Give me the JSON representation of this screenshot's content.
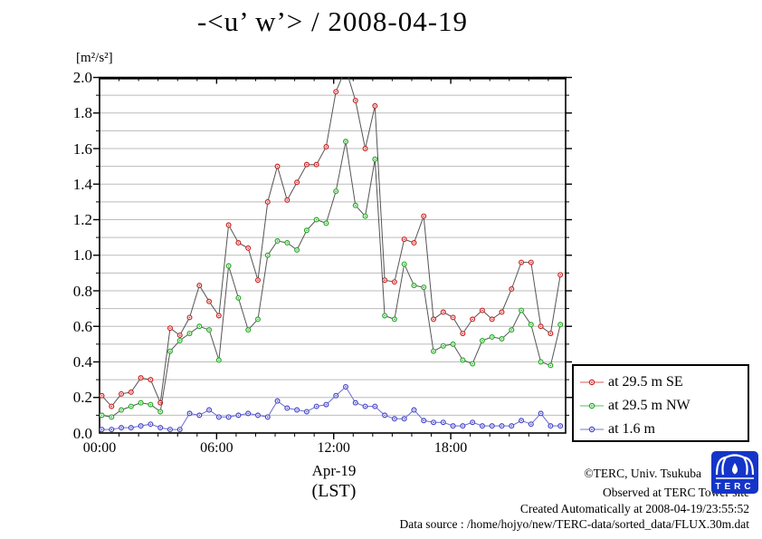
{
  "chart_data": {
    "type": "line",
    "title": "-<u’ w’> / 2008-04-19",
    "ylabel": "[m²/s²]",
    "ylim": [
      0.0,
      2.0
    ],
    "y_tick_step": 0.2,
    "y_minor_step": 0.1,
    "grid": "horizontal-only",
    "legend_position": "outside-right-bottom",
    "x_tick_labels": [
      "00:00",
      "06:00",
      "12:00",
      "18:00"
    ],
    "x_tick_hours": [
      0,
      6,
      12,
      18
    ],
    "x_date_label": "Apr-19",
    "x_unit_label": "(LST)",
    "x_times": [
      "00:00",
      "00:30",
      "01:00",
      "01:30",
      "02:00",
      "02:30",
      "03:00",
      "03:30",
      "04:00",
      "04:30",
      "05:00",
      "05:30",
      "06:00",
      "06:30",
      "07:00",
      "07:30",
      "08:00",
      "08:30",
      "09:00",
      "09:30",
      "10:00",
      "10:30",
      "11:00",
      "11:30",
      "12:00",
      "12:30",
      "13:00",
      "13:30",
      "14:00",
      "14:30",
      "15:00",
      "15:30",
      "16:00",
      "16:30",
      "17:00",
      "17:30",
      "18:00",
      "18:30",
      "19:00",
      "19:30",
      "20:00",
      "20:30",
      "21:00",
      "21:30",
      "22:00",
      "22:30",
      "23:00",
      "23:30"
    ],
    "series": [
      {
        "name": "at 29.5 m SE",
        "marker_color": "#cc2222",
        "line_color": "#555555",
        "clipped_above_max_index": 25,
        "values": [
          0.21,
          0.15,
          0.22,
          0.23,
          0.31,
          0.3,
          0.17,
          0.59,
          0.55,
          0.65,
          0.83,
          0.74,
          0.66,
          1.17,
          1.07,
          1.04,
          0.86,
          1.3,
          1.5,
          1.31,
          1.41,
          1.51,
          1.51,
          1.61,
          1.92,
          2.05,
          1.87,
          1.6,
          1.84,
          0.86,
          0.85,
          1.09,
          1.07,
          1.22,
          0.64,
          0.68,
          0.65,
          0.56,
          0.64,
          0.69,
          0.64,
          0.68,
          0.81,
          0.96,
          0.96,
          0.6,
          0.56,
          0.89
        ]
      },
      {
        "name": "at 29.5 m NW",
        "marker_color": "#22aa22",
        "line_color": "#555555",
        "values": [
          0.1,
          0.09,
          0.13,
          0.15,
          0.17,
          0.16,
          0.12,
          0.46,
          0.52,
          0.56,
          0.6,
          0.58,
          0.41,
          0.94,
          0.76,
          0.58,
          0.64,
          1.0,
          1.08,
          1.07,
          1.03,
          1.14,
          1.2,
          1.18,
          1.36,
          1.64,
          1.28,
          1.22,
          1.54,
          0.66,
          0.64,
          0.95,
          0.83,
          0.82,
          0.46,
          0.49,
          0.5,
          0.41,
          0.39,
          0.52,
          0.54,
          0.53,
          0.58,
          0.69,
          0.61,
          0.4,
          0.38,
          0.61
        ]
      },
      {
        "name": "at 1.6 m",
        "marker_color": "#4646c8",
        "line_color": "#6a6ad4",
        "values": [
          0.02,
          0.02,
          0.03,
          0.03,
          0.04,
          0.05,
          0.03,
          0.02,
          0.02,
          0.11,
          0.1,
          0.13,
          0.09,
          0.09,
          0.1,
          0.11,
          0.1,
          0.09,
          0.18,
          0.14,
          0.13,
          0.12,
          0.15,
          0.16,
          0.21,
          0.26,
          0.17,
          0.15,
          0.15,
          0.1,
          0.08,
          0.08,
          0.13,
          0.07,
          0.06,
          0.06,
          0.04,
          0.04,
          0.06,
          0.04,
          0.04,
          0.04,
          0.04,
          0.07,
          0.05,
          0.11,
          0.04,
          0.04
        ]
      }
    ]
  },
  "yaxis": {
    "ticks": [
      "2.0",
      "1.8",
      "1.6",
      "1.4",
      "1.2",
      "1.0",
      "0.8",
      "0.6",
      "0.4",
      "0.2",
      "0.0"
    ],
    "tick_values": [
      2.0,
      1.8,
      1.6,
      1.4,
      1.2,
      1.0,
      0.8,
      0.6,
      0.4,
      0.2,
      0.0
    ]
  },
  "legend": {
    "items": [
      {
        "label": "at 29.5 m SE",
        "color": "#cc2222"
      },
      {
        "label": "at 29.5 m NW",
        "color": "#22aa22"
      },
      {
        "label": "at 1.6 m",
        "color": "#4646c8"
      }
    ]
  },
  "footer": {
    "lines": [
      "©TERC, Univ. Tsukuba",
      "Observed at TERC Tower site",
      "Created Automatically at 2008-04-19/23:55:52",
      "Data source : /home/hojyo/new/TERC-data/sorted_data/FLUX.30m.dat"
    ]
  },
  "logo": {
    "text": "TERC",
    "color": "#1535c8"
  },
  "colors": {
    "grid": "#bbbbbb",
    "axis": "#000000",
    "background": "#ffffff"
  }
}
